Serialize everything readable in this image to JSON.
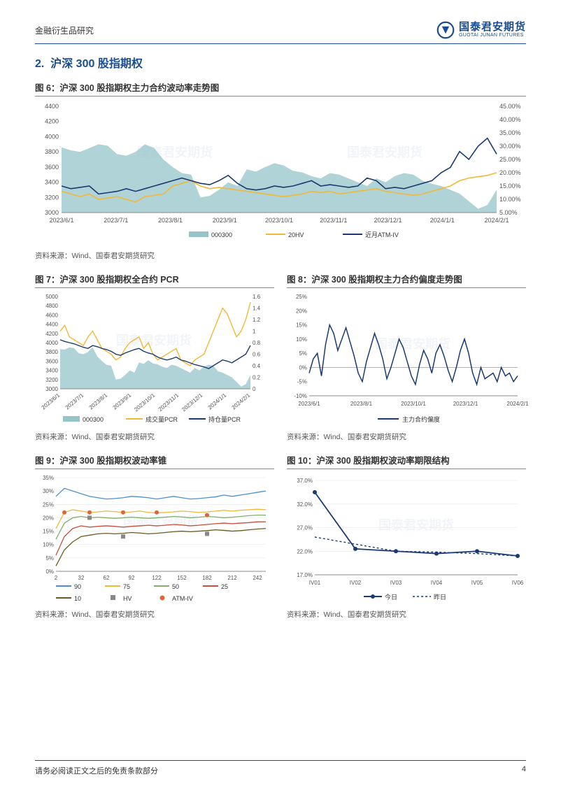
{
  "header": {
    "category": "金融衍生品研究",
    "logo_cn": "国泰君安期货",
    "logo_en": "GUOTAI JUNAN FUTURES"
  },
  "section": {
    "number": "2.",
    "title": "沪深 300 股指期权"
  },
  "watermark": "国泰君安期货",
  "chart6": {
    "title": "图 6：沪深 300 股指期权主力合约波动率走势图",
    "source": "资料来源：Wind、国泰君安期货研究",
    "type": "combo_area_line_dual_axis",
    "x_labels": [
      "2023/6/1",
      "2023/7/1",
      "2023/8/1",
      "2023/9/1",
      "2023/10/1",
      "2023/11/1",
      "2023/12/1",
      "2024/1/1",
      "2024/2/1"
    ],
    "y1_ticks": [
      3000,
      3200,
      3400,
      3600,
      3800,
      4000,
      4200,
      4400
    ],
    "y2_ticks": [
      "5.00%",
      "10.00%",
      "15.00%",
      "20.00%",
      "25.00%",
      "30.00%",
      "35.00%",
      "40.00%",
      "45.00%"
    ],
    "y1_lim": [
      3000,
      4400
    ],
    "y2_lim": [
      5,
      45
    ],
    "legend": [
      {
        "label": "000300",
        "color": "#96c4c9",
        "type": "area"
      },
      {
        "label": "20HV",
        "color": "#f2b838",
        "type": "line"
      },
      {
        "label": "近月ATM-IV",
        "color": "#1a3a70",
        "type": "line"
      }
    ],
    "series_000300": [
      3860,
      3820,
      3800,
      3850,
      3900,
      3880,
      3770,
      3750,
      3800,
      3900,
      3850,
      3700,
      3600,
      3520,
      3500,
      3200,
      3220,
      3300,
      3400,
      3350,
      3570,
      3540,
      3600,
      3650,
      3620,
      3550,
      3530,
      3480,
      3450,
      3520,
      3500,
      3450,
      3400,
      3350,
      3450,
      3400,
      3480,
      3520,
      3500,
      3420,
      3380,
      3350,
      3300,
      3250,
      3150,
      3050,
      3100,
      3300
    ],
    "series_20HV": [
      13,
      12,
      11,
      12,
      10,
      10.5,
      11,
      10,
      9,
      11,
      11.5,
      12,
      15,
      16,
      17,
      15,
      14,
      14.5,
      14,
      13.5,
      13,
      12.5,
      12,
      11.5,
      11,
      11.5,
      12,
      13,
      12.5,
      13,
      12,
      12.5,
      13,
      13.5,
      14,
      13,
      12.5,
      12,
      11.5,
      12,
      13,
      14,
      15,
      17,
      18,
      18.5,
      19,
      20
    ],
    "series_ATMIV": [
      15,
      14,
      14.5,
      15,
      12,
      12.5,
      13,
      14,
      13,
      14,
      15,
      16,
      17,
      18,
      17,
      16,
      15.5,
      17,
      19,
      16,
      14,
      13.5,
      14,
      15,
      14.5,
      15,
      16,
      17,
      15,
      15.5,
      15,
      14.5,
      15,
      18,
      17,
      14,
      14.5,
      14,
      15,
      16,
      17,
      20,
      22,
      28,
      25,
      30,
      33,
      27
    ],
    "line_width": 1.6,
    "background_color": "#ffffff"
  },
  "chart7": {
    "title": "图 7：沪深 300 股指期权全合约 PCR",
    "source": "资料来源：Wind、国泰君安期货研究",
    "type": "combo_area_line_dual_axis",
    "x_labels": [
      "2023/6/1",
      "2023/7/1",
      "2023/8/1",
      "2023/9/1",
      "2023/10/1",
      "2023/11/1",
      "2023/12/1",
      "2024/1/1",
      "2024/2/1"
    ],
    "y1_ticks": [
      3000,
      3200,
      3400,
      3600,
      3800,
      4000,
      4200,
      4400,
      4600,
      4800,
      5000
    ],
    "y2_ticks": [
      0,
      0.2,
      0.4,
      0.6,
      0.8,
      1,
      1.2,
      1.4,
      1.6
    ],
    "y1_lim": [
      3000,
      5000
    ],
    "y2_lim": [
      0,
      1.6
    ],
    "legend": [
      {
        "label": "000300",
        "color": "#96c4c9",
        "type": "area"
      },
      {
        "label": "成交量PCR",
        "color": "#f2b838",
        "type": "line"
      },
      {
        "label": "持仓量PCR",
        "color": "#1a3a70",
        "type": "line"
      }
    ],
    "series_000300": [
      3860,
      3850,
      3900,
      3880,
      3770,
      3750,
      3800,
      3900,
      3700,
      3600,
      3520,
      3500,
      3200,
      3220,
      3300,
      3400,
      3350,
      3570,
      3540,
      3620,
      3550,
      3530,
      3480,
      3450,
      3520,
      3500,
      3450,
      3400,
      3350,
      3450,
      3400,
      3480,
      3520,
      3500,
      3380,
      3350,
      3300,
      3250,
      3150,
      3050,
      3100,
      3300
    ],
    "series_vol": [
      1.0,
      1.1,
      0.9,
      0.85,
      0.8,
      0.75,
      0.9,
      1.0,
      0.85,
      0.7,
      0.65,
      0.6,
      0.5,
      0.55,
      0.7,
      0.8,
      0.85,
      0.9,
      0.7,
      0.8,
      0.6,
      0.5,
      0.55,
      0.6,
      0.65,
      0.7,
      0.5,
      0.45,
      0.4,
      0.5,
      0.55,
      0.6,
      0.8,
      1.0,
      1.2,
      1.4,
      1.3,
      1.1,
      0.9,
      1.0,
      1.2,
      1.5
    ],
    "series_oi": [
      0.85,
      0.82,
      0.8,
      0.78,
      0.75,
      0.72,
      0.7,
      0.75,
      0.73,
      0.7,
      0.68,
      0.65,
      0.6,
      0.58,
      0.62,
      0.65,
      0.68,
      0.7,
      0.65,
      0.62,
      0.6,
      0.55,
      0.52,
      0.5,
      0.52,
      0.55,
      0.5,
      0.48,
      0.45,
      0.42,
      0.4,
      0.38,
      0.35,
      0.4,
      0.45,
      0.5,
      0.48,
      0.45,
      0.5,
      0.55,
      0.6,
      0.75
    ],
    "line_width": 1.4
  },
  "chart8": {
    "title": "图 8：沪深 300 股指期权主力合约偏度走势图",
    "source": "资料来源：Wind、国泰君安期货研究",
    "type": "line",
    "x_labels": [
      "2023/6/1",
      "2023/8/1",
      "2023/10/1",
      "2023/12/1",
      "2024/2/1"
    ],
    "y_ticks": [
      "-10%",
      "-5%",
      "0%",
      "5%",
      "10%",
      "15%",
      "20%",
      "25%"
    ],
    "y_lim": [
      -10,
      25
    ],
    "legend": [
      {
        "label": "主力合约偏度",
        "color": "#1a3a70",
        "type": "line"
      }
    ],
    "series": [
      -2,
      3,
      5,
      -3,
      8,
      15,
      12,
      6,
      10,
      14,
      9,
      4,
      -2,
      -5,
      2,
      7,
      12,
      8,
      3,
      -4,
      0,
      5,
      10,
      7,
      2,
      -3,
      -6,
      1,
      6,
      3,
      -2,
      5,
      8,
      4,
      -1,
      -5,
      0,
      6,
      10,
      5,
      -2,
      -6,
      0,
      -4,
      -3,
      -2,
      -5,
      0,
      -3,
      -2,
      -5,
      -3
    ],
    "zero_line_color": "#aaaaaa",
    "line_width": 1.5
  },
  "chart9": {
    "title": "图 9：沪深 300 股指期权波动率锥",
    "source": "资料来源：Wind、国泰君安期货研究",
    "type": "line_multi_markers",
    "x_labels": [
      "2",
      "32",
      "62",
      "92",
      "122",
      "152",
      "182",
      "212",
      "242"
    ],
    "y_ticks": [
      "0%",
      "5%",
      "10%",
      "15%",
      "20%",
      "25%",
      "30%",
      "35%"
    ],
    "y_lim": [
      0,
      35
    ],
    "legend": [
      {
        "label": "90",
        "color": "#4a8fd4",
        "type": "line"
      },
      {
        "label": "75",
        "color": "#f2b838",
        "type": "line"
      },
      {
        "label": "50",
        "color": "#7fb069",
        "type": "line"
      },
      {
        "label": "25",
        "color": "#c94f3c",
        "type": "line"
      },
      {
        "label": "10",
        "color": "#6b5a1f",
        "type": "line"
      },
      {
        "label": "HV",
        "color": "#888888",
        "type": "marker_square"
      },
      {
        "label": "ATM-IV",
        "color": "#d9663d",
        "type": "marker_circle"
      }
    ],
    "x_vals": [
      2,
      12,
      22,
      32,
      42,
      52,
      62,
      72,
      82,
      92,
      102,
      112,
      122,
      132,
      142,
      152,
      162,
      172,
      182,
      192,
      202,
      212,
      222,
      232,
      242,
      252
    ],
    "series_90": [
      28,
      31,
      30,
      29,
      28,
      27.5,
      27,
      27.2,
      27.5,
      28,
      27.8,
      27.5,
      27,
      27.5,
      28,
      27.5,
      27,
      27.2,
      27.5,
      27.8,
      28.5,
      28,
      28.5,
      29,
      29.5,
      30
    ],
    "series_75": [
      16,
      22,
      23,
      22.5,
      22,
      22.2,
      22.5,
      22.3,
      22,
      22.2,
      22.5,
      22,
      21.8,
      22,
      22.2,
      22.5,
      22.3,
      22,
      22.2,
      22.5,
      22.8,
      22.5,
      22.8,
      23,
      23.2,
      23
    ],
    "series_50": [
      12,
      18,
      20,
      20.5,
      20,
      20.2,
      20,
      19.8,
      20,
      20.2,
      20,
      19.8,
      20,
      20.2,
      20.5,
      20.3,
      20,
      20.2,
      20.5,
      20.3,
      20,
      20.2,
      20.5,
      20.8,
      21,
      21
    ],
    "series_25": [
      6,
      13,
      16,
      17,
      16.5,
      16.8,
      17,
      16.8,
      16.5,
      16.8,
      17,
      17.2,
      17,
      17.2,
      17.5,
      17.3,
      17,
      17.2,
      17.5,
      17.8,
      18,
      17.8,
      18,
      18.2,
      18.5,
      18.5
    ],
    "series_10": [
      2,
      8,
      11,
      13,
      13.5,
      14,
      14.2,
      14,
      14.2,
      14.5,
      14.3,
      14,
      14.2,
      14.5,
      14.8,
      15,
      14.8,
      15,
      15.2,
      15.5,
      15.3,
      15,
      15.2,
      15.5,
      15.8,
      16
    ],
    "markers_hv": [
      {
        "x": 42,
        "y": 20
      },
      {
        "x": 82,
        "y": 13
      },
      {
        "x": 182,
        "y": 14
      }
    ],
    "markers_atm": [
      {
        "x": 12,
        "y": 22
      },
      {
        "x": 42,
        "y": 22
      },
      {
        "x": 82,
        "y": 22
      },
      {
        "x": 122,
        "y": 22
      },
      {
        "x": 182,
        "y": 21
      }
    ],
    "line_width": 1.3
  },
  "chart10": {
    "title": "图 10：沪深 300 股指期权波动率期限结构",
    "source": "资料来源：Wind、国泰君安期货研究",
    "type": "line_dashed",
    "x_labels": [
      "IV01",
      "IV02",
      "IV03",
      "IV04",
      "IV05",
      "IV06"
    ],
    "y_ticks": [
      "17.0%",
      "22.0%",
      "27.0%",
      "32.0%",
      "37.0%"
    ],
    "y_lim": [
      17,
      37
    ],
    "legend": [
      {
        "label": "今日",
        "color": "#1a3a70",
        "type": "line"
      },
      {
        "label": "昨日",
        "color": "#1a3a70",
        "type": "line_dashed"
      }
    ],
    "series_today": [
      34.5,
      22.5,
      22,
      21.5,
      22,
      21
    ],
    "series_yday": [
      25,
      23.5,
      22,
      21.8,
      21.5,
      21
    ],
    "line_width": 1.8,
    "marker": "circle"
  },
  "footer": {
    "disclaimer": "请务必阅读正文之后的免责条款部分",
    "page": "4"
  },
  "colors": {
    "brand_blue": "#1a4d8f",
    "dark_navy": "#1a3a70",
    "gold": "#f2b838",
    "teal_area": "#96c4c9",
    "grid": "#e5e5e5",
    "axis": "#888888"
  }
}
